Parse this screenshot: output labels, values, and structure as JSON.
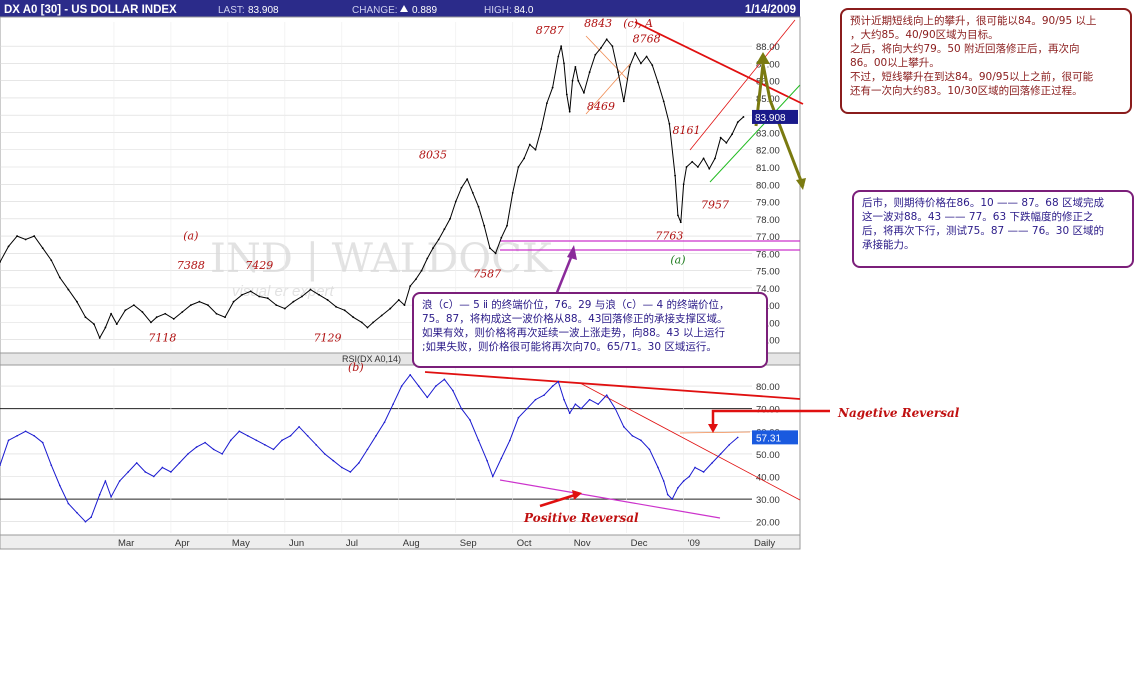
{
  "header": {
    "symbol": "DX A0 [30] - US DOLLAR INDEX",
    "last_label": "LAST:",
    "last_value": "83.908",
    "change_label": "CHANGE:",
    "change_value": "0.889",
    "high_label": "HIGH:",
    "high_value": "84.0",
    "date": "1/14/2009",
    "bg_color": "#2b2b8a"
  },
  "watermark": "IND | WALDOCK",
  "watermark_sub": "visual   er expert",
  "chart_data": [
    {
      "type": "line",
      "name": "price",
      "ylim": [
        70.4,
        89.4
      ],
      "y_ticks": [
        71,
        72,
        73,
        74,
        75,
        76,
        77,
        78,
        79,
        80,
        81,
        82,
        83,
        84,
        85,
        86,
        87,
        88
      ],
      "y_tick_labels": [
        "71.00",
        "72.00",
        "73.00",
        "74.00",
        "75.00",
        "76.00",
        "77.00",
        "78.00",
        "79.00",
        "80.00",
        "81.00",
        "82.00",
        "83.00",
        "84.00",
        "85.00",
        "86.00",
        "87.00",
        "88.00"
      ],
      "x_ticks": [
        "Mar",
        "Apr",
        "May",
        "Jun",
        "Jul",
        "Aug",
        "Sep",
        "Oct",
        "Nov",
        "Dec",
        "'09",
        "Daily"
      ],
      "x_tick_pos": [
        2.0,
        3.0,
        4.0,
        5.0,
        6.0,
        7.0,
        8.0,
        9.0,
        10.0,
        11.0,
        12.0,
        12.8
      ],
      "last_label": "83.908",
      "points": [
        [
          0.0,
          75.5
        ],
        [
          0.15,
          76.4
        ],
        [
          0.3,
          77.0
        ],
        [
          0.45,
          76.8
        ],
        [
          0.6,
          77.0
        ],
        [
          0.75,
          76.3
        ],
        [
          0.9,
          75.6
        ],
        [
          1.05,
          74.6
        ],
        [
          1.2,
          73.9
        ],
        [
          1.35,
          73.2
        ],
        [
          1.5,
          72.3
        ],
        [
          1.65,
          71.9
        ],
        [
          1.75,
          71.1
        ],
        [
          1.85,
          71.7
        ],
        [
          1.95,
          72.5
        ],
        [
          2.05,
          71.9
        ],
        [
          2.2,
          72.7
        ],
        [
          2.35,
          73.0
        ],
        [
          2.5,
          72.6
        ],
        [
          2.65,
          72.0
        ],
        [
          2.75,
          72.3
        ],
        [
          2.9,
          72.5
        ],
        [
          3.05,
          72.2
        ],
        [
          3.2,
          72.6
        ],
        [
          3.35,
          73.0
        ],
        [
          3.5,
          73.2
        ],
        [
          3.65,
          73.0
        ],
        [
          3.8,
          72.5
        ],
        [
          3.95,
          72.3
        ],
        [
          4.1,
          73.2
        ],
        [
          4.25,
          73.6
        ],
        [
          4.4,
          73.8
        ],
        [
          4.55,
          73.5
        ],
        [
          4.7,
          73.4
        ],
        [
          4.85,
          73.0
        ],
        [
          5.0,
          72.8
        ],
        [
          5.15,
          73.2
        ],
        [
          5.3,
          73.5
        ],
        [
          5.45,
          73.9
        ],
        [
          5.6,
          73.6
        ],
        [
          5.75,
          73.3
        ],
        [
          5.9,
          72.9
        ],
        [
          6.05,
          72.7
        ],
        [
          6.2,
          72.3
        ],
        [
          6.35,
          72.0
        ],
        [
          6.45,
          71.7
        ],
        [
          6.55,
          72.0
        ],
        [
          6.7,
          72.4
        ],
        [
          6.85,
          72.8
        ],
        [
          7.0,
          73.3
        ],
        [
          7.1,
          73.0
        ],
        [
          7.2,
          74.1
        ],
        [
          7.3,
          74.5
        ],
        [
          7.4,
          75.0
        ],
        [
          7.5,
          75.7
        ],
        [
          7.6,
          76.3
        ],
        [
          7.7,
          76.8
        ],
        [
          7.8,
          77.4
        ],
        [
          7.9,
          78.0
        ],
        [
          8.0,
          79.0
        ],
        [
          8.1,
          79.8
        ],
        [
          8.2,
          80.3
        ],
        [
          8.3,
          79.5
        ],
        [
          8.4,
          78.7
        ],
        [
          8.5,
          77.6
        ],
        [
          8.6,
          76.3
        ],
        [
          8.7,
          76.0
        ],
        [
          8.8,
          76.9
        ],
        [
          8.9,
          77.6
        ],
        [
          9.0,
          79.5
        ],
        [
          9.1,
          81.0
        ],
        [
          9.2,
          81.5
        ],
        [
          9.3,
          82.3
        ],
        [
          9.4,
          82.0
        ],
        [
          9.5,
          83.2
        ],
        [
          9.6,
          84.7
        ],
        [
          9.7,
          85.6
        ],
        [
          9.8,
          87.4
        ],
        [
          9.85,
          88.0
        ],
        [
          9.9,
          87.0
        ],
        [
          9.95,
          85.2
        ],
        [
          10.0,
          84.2
        ],
        [
          10.05,
          86.0
        ],
        [
          10.1,
          86.8
        ],
        [
          10.15,
          86.0
        ],
        [
          10.25,
          85.3
        ],
        [
          10.35,
          86.5
        ],
        [
          10.45,
          87.5
        ],
        [
          10.55,
          87.9
        ],
        [
          10.65,
          88.4
        ],
        [
          10.75,
          88.0
        ],
        [
          10.85,
          86.5
        ],
        [
          10.95,
          84.8
        ],
        [
          11.05,
          86.8
        ],
        [
          11.15,
          87.6
        ],
        [
          11.25,
          87.0
        ],
        [
          11.35,
          87.4
        ],
        [
          11.45,
          86.9
        ],
        [
          11.55,
          85.9
        ],
        [
          11.65,
          84.8
        ],
        [
          11.75,
          83.5
        ],
        [
          11.85,
          80.5
        ],
        [
          11.9,
          78.2
        ],
        [
          11.95,
          77.8
        ],
        [
          12.0,
          80.0
        ],
        [
          12.05,
          81.0
        ],
        [
          12.15,
          81.3
        ],
        [
          12.25,
          81.0
        ],
        [
          12.35,
          81.5
        ],
        [
          12.45,
          80.9
        ],
        [
          12.55,
          81.5
        ],
        [
          12.65,
          82.7
        ],
        [
          12.75,
          82.4
        ],
        [
          12.85,
          82.9
        ],
        [
          12.95,
          83.6
        ],
        [
          13.05,
          83.9
        ]
      ]
    },
    {
      "type": "line",
      "name": "rsi",
      "ylim": [
        15.0,
        88.0
      ],
      "y_ticks": [
        20,
        30,
        40,
        50,
        60,
        70,
        80
      ],
      "y_tick_labels": [
        "20.00",
        "30.00",
        "40.00",
        "50.00",
        "60.00",
        "70.00",
        "80.00"
      ],
      "last_label": "57.31",
      "points": [
        [
          0.0,
          45
        ],
        [
          0.15,
          56
        ],
        [
          0.3,
          58
        ],
        [
          0.45,
          60
        ],
        [
          0.6,
          58
        ],
        [
          0.75,
          55
        ],
        [
          0.9,
          45
        ],
        [
          1.05,
          36
        ],
        [
          1.2,
          28
        ],
        [
          1.35,
          24
        ],
        [
          1.5,
          20
        ],
        [
          1.6,
          22
        ],
        [
          1.75,
          32
        ],
        [
          1.85,
          38
        ],
        [
          1.95,
          31
        ],
        [
          2.1,
          38
        ],
        [
          2.25,
          42
        ],
        [
          2.4,
          46
        ],
        [
          2.55,
          42
        ],
        [
          2.7,
          40
        ],
        [
          2.85,
          44
        ],
        [
          3.0,
          42
        ],
        [
          3.15,
          46
        ],
        [
          3.3,
          50
        ],
        [
          3.45,
          53
        ],
        [
          3.6,
          55
        ],
        [
          3.75,
          52
        ],
        [
          3.9,
          50
        ],
        [
          4.05,
          56
        ],
        [
          4.2,
          60
        ],
        [
          4.35,
          58
        ],
        [
          4.5,
          56
        ],
        [
          4.65,
          54
        ],
        [
          4.8,
          52
        ],
        [
          4.95,
          56
        ],
        [
          5.1,
          58
        ],
        [
          5.25,
          62
        ],
        [
          5.4,
          58
        ],
        [
          5.55,
          54
        ],
        [
          5.7,
          50
        ],
        [
          5.85,
          47
        ],
        [
          6.0,
          44
        ],
        [
          6.15,
          42
        ],
        [
          6.3,
          46
        ],
        [
          6.45,
          52
        ],
        [
          6.6,
          58
        ],
        [
          6.75,
          64
        ],
        [
          6.9,
          72
        ],
        [
          7.05,
          80
        ],
        [
          7.2,
          85
        ],
        [
          7.35,
          80
        ],
        [
          7.5,
          75
        ],
        [
          7.65,
          80
        ],
        [
          7.8,
          83
        ],
        [
          7.95,
          78
        ],
        [
          8.1,
          70
        ],
        [
          8.25,
          65
        ],
        [
          8.4,
          56
        ],
        [
          8.55,
          47
        ],
        [
          8.65,
          40
        ],
        [
          8.8,
          48
        ],
        [
          8.95,
          56
        ],
        [
          9.1,
          66
        ],
        [
          9.25,
          70
        ],
        [
          9.4,
          74
        ],
        [
          9.55,
          76
        ],
        [
          9.7,
          80
        ],
        [
          9.8,
          82
        ],
        [
          9.9,
          74
        ],
        [
          10.0,
          68
        ],
        [
          10.1,
          72
        ],
        [
          10.2,
          70
        ],
        [
          10.35,
          74
        ],
        [
          10.5,
          72
        ],
        [
          10.65,
          76
        ],
        [
          10.8,
          70
        ],
        [
          10.95,
          62
        ],
        [
          11.1,
          58
        ],
        [
          11.25,
          56
        ],
        [
          11.4,
          52
        ],
        [
          11.55,
          44
        ],
        [
          11.65,
          38
        ],
        [
          11.72,
          32
        ],
        [
          11.8,
          30
        ],
        [
          11.9,
          35
        ],
        [
          12.0,
          38
        ],
        [
          12.1,
          40
        ],
        [
          12.2,
          44
        ],
        [
          12.35,
          42
        ],
        [
          12.5,
          46
        ],
        [
          12.65,
          50
        ],
        [
          12.8,
          54
        ],
        [
          12.95,
          57.31
        ]
      ]
    }
  ],
  "annotations": {
    "labels_price": [
      {
        "text": "(a)",
        "x": 3.35,
        "y": 76.8
      },
      {
        "text": "7388",
        "x": 3.35,
        "y": 75.1
      },
      {
        "text": "7429",
        "x": 4.55,
        "y": 75.1
      },
      {
        "text": "7118",
        "x": 2.85,
        "y": 70.9
      },
      {
        "text": "7129",
        "x": 5.75,
        "y": 70.9
      },
      {
        "text": "8035",
        "x": 7.6,
        "y": 81.5
      },
      {
        "text": "7587",
        "x": 8.55,
        "y": 74.6
      },
      {
        "text": "8787",
        "x": 9.65,
        "y": 88.7
      },
      {
        "text": "8843",
        "x": 10.5,
        "y": 89.1
      },
      {
        "text": "(c), A",
        "x": 11.2,
        "y": 89.1
      },
      {
        "text": "8768",
        "x": 11.35,
        "y": 88.2
      },
      {
        "text": "8469",
        "x": 10.55,
        "y": 84.3
      },
      {
        "text": "8161",
        "x": 12.05,
        "y": 82.9
      },
      {
        "text": "7763",
        "x": 11.75,
        "y": 76.8
      },
      {
        "text": "7957",
        "x": 12.55,
        "y": 78.6
      },
      {
        "text": "(a)",
        "x": 11.9,
        "y": 75.4
      }
    ],
    "label_b": "(b)",
    "label_rsi": "RSI(DX A0,14)",
    "negative_reversal": "Nagetive Reversal",
    "positive_reversal": "Positive Reversal"
  },
  "notes": {
    "top": [
      "预计近期短线向上的攀升，很可能以84。90/95 以上",
      "，大约85。40/90区域为目标。",
      "之后，将向大约79。50 附近回落修正后，再次向",
      "86。00以上攀升。",
      "不过，短线攀升在到达84。90/95以上之前，很可能",
      "还有一次向大约83。10/30区域的回落修正过程。"
    ],
    "mid": [
      "后市，则期待价格在86。10 —— 87。68 区域完成",
      "这一波对88。43 —— 77。63 下跌幅度的修正之",
      "后，将再次下行，测试75。87 —— 76。30 区域的",
      "承接能力。"
    ],
    "center": [
      "浪（c）— 5 ⅱ 的终端价位，76。29 与浪（c）— 4 的终端价位，",
      "75。87，将构成这一波价格从88。43回落修正的承接支撑区域。",
      "如果有效，则价格将再次延续一波上涨走势，向88。43 以上运行",
      ";如果失败，则价格很可能将再次向70。65/71。30 区域运行。"
    ]
  },
  "colors": {
    "price_line": "#000000",
    "rsi_line": "#1a1ad0",
    "trend_red": "#e01010",
    "projection": "#7a7a10",
    "support_magenta": "#cc33cc",
    "label_red": "#b01010",
    "label_green": "#1a7a1a",
    "last_tag": "#1a1a8a",
    "rsi_tag": "#1a5adf"
  }
}
